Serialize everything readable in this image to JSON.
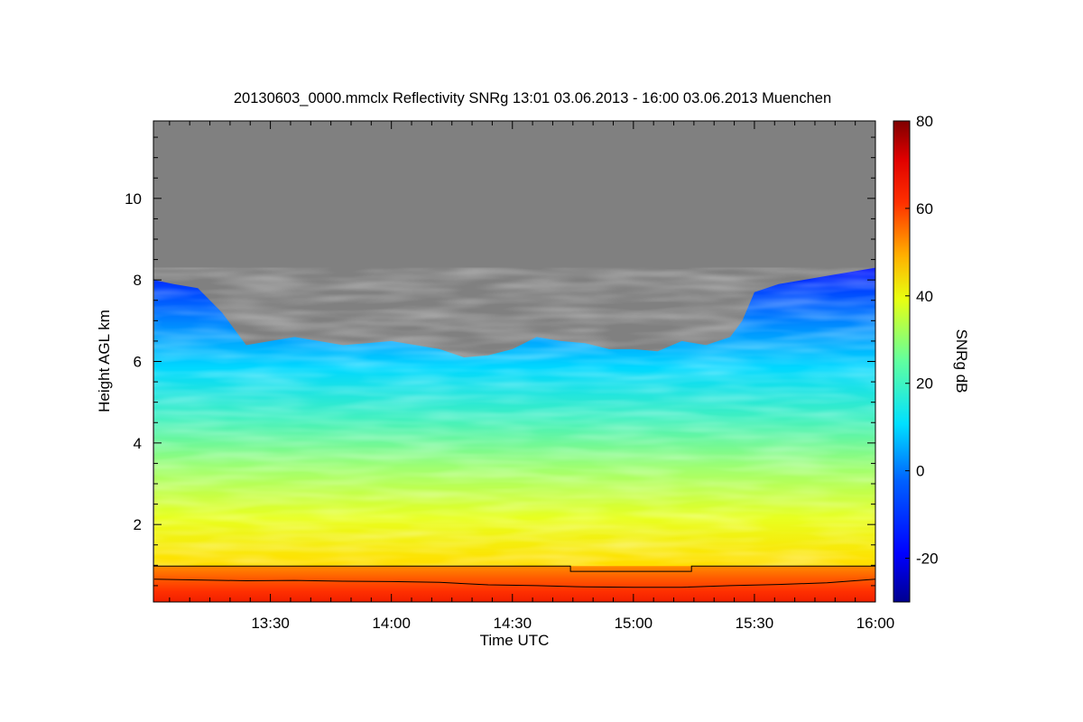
{
  "chart_data": {
    "type": "heatmap",
    "title": "20130603_0000.mmclx Reflectivity SNRg   13:01 03.06.2013 - 16:00 03.06.2013 Muenchen",
    "xlabel": "Time UTC",
    "ylabel": "Height AGL km",
    "x_ticks": [
      {
        "t": 13.5,
        "label": "13:30"
      },
      {
        "t": 14.0,
        "label": "14:00"
      },
      {
        "t": 14.5,
        "label": "14:30"
      },
      {
        "t": 15.0,
        "label": "15:00"
      },
      {
        "t": 15.5,
        "label": "15:30"
      },
      {
        "t": 16.0,
        "label": "16:00"
      }
    ],
    "xlim": [
      13.0167,
      16.0
    ],
    "y_ticks": [
      2,
      4,
      6,
      8,
      10
    ],
    "ylim": [
      0.1,
      11.9
    ],
    "colorbar": {
      "label": "SNRg dB",
      "range": [
        -30,
        80
      ],
      "ticks": [
        -20,
        0,
        20,
        40,
        60,
        80
      ]
    },
    "no_data_color": "#808080",
    "signal_top_km": [
      {
        "t": 13.02,
        "h": 8.0
      },
      {
        "t": 13.1,
        "h": 7.9
      },
      {
        "t": 13.2,
        "h": 7.8
      },
      {
        "t": 13.3,
        "h": 7.2
      },
      {
        "t": 13.4,
        "h": 6.4
      },
      {
        "t": 13.5,
        "h": 6.5
      },
      {
        "t": 13.6,
        "h": 6.6
      },
      {
        "t": 13.7,
        "h": 6.5
      },
      {
        "t": 13.8,
        "h": 6.4
      },
      {
        "t": 13.9,
        "h": 6.45
      },
      {
        "t": 14.0,
        "h": 6.5
      },
      {
        "t": 14.1,
        "h": 6.4
      },
      {
        "t": 14.2,
        "h": 6.3
      },
      {
        "t": 14.3,
        "h": 6.1
      },
      {
        "t": 14.4,
        "h": 6.15
      },
      {
        "t": 14.5,
        "h": 6.3
      },
      {
        "t": 14.6,
        "h": 6.6
      },
      {
        "t": 14.7,
        "h": 6.5
      },
      {
        "t": 14.8,
        "h": 6.45
      },
      {
        "t": 14.9,
        "h": 6.3
      },
      {
        "t": 15.0,
        "h": 6.3
      },
      {
        "t": 15.1,
        "h": 6.25
      },
      {
        "t": 15.2,
        "h": 6.5
      },
      {
        "t": 15.3,
        "h": 6.4
      },
      {
        "t": 15.4,
        "h": 6.6
      },
      {
        "t": 15.45,
        "h": 7.0
      },
      {
        "t": 15.5,
        "h": 7.7
      },
      {
        "t": 15.6,
        "h": 7.9
      },
      {
        "t": 15.7,
        "h": 8.0
      },
      {
        "t": 15.8,
        "h": 8.1
      },
      {
        "t": 15.9,
        "h": 8.2
      },
      {
        "t": 16.0,
        "h": 8.3
      }
    ],
    "overlay_step_km": [
      {
        "t": 13.0167,
        "h": 0.98
      },
      {
        "t": 14.74,
        "h": 0.98
      },
      {
        "t": 14.74,
        "h": 0.85
      },
      {
        "t": 15.24,
        "h": 0.85
      },
      {
        "t": 15.24,
        "h": 0.98
      },
      {
        "t": 16.0,
        "h": 0.98
      }
    ],
    "overlay_line_km": [
      {
        "t": 13.02,
        "h": 0.66
      },
      {
        "t": 13.2,
        "h": 0.64
      },
      {
        "t": 13.4,
        "h": 0.62
      },
      {
        "t": 13.6,
        "h": 0.63
      },
      {
        "t": 13.8,
        "h": 0.61
      },
      {
        "t": 14.0,
        "h": 0.6
      },
      {
        "t": 14.2,
        "h": 0.58
      },
      {
        "t": 14.4,
        "h": 0.52
      },
      {
        "t": 14.6,
        "h": 0.5
      },
      {
        "t": 14.8,
        "h": 0.47
      },
      {
        "t": 15.0,
        "h": 0.46
      },
      {
        "t": 15.2,
        "h": 0.46
      },
      {
        "t": 15.4,
        "h": 0.5
      },
      {
        "t": 15.6,
        "h": 0.53
      },
      {
        "t": 15.8,
        "h": 0.57
      },
      {
        "t": 16.0,
        "h": 0.66
      }
    ]
  }
}
